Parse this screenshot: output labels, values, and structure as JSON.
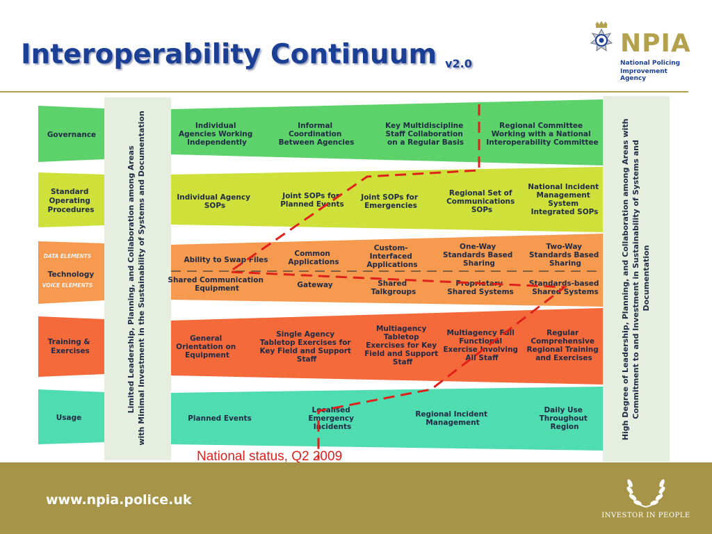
{
  "header": {
    "title": "Interoperability Continuum",
    "version": "v2.0"
  },
  "logo": {
    "name": "NPIA",
    "line1": "National Policing",
    "line2": "Improvement Agency"
  },
  "colors": {
    "governance": "#5ed26a",
    "sop": "#cfe03a",
    "technology": "#f69a4f",
    "training": "#f46a3b",
    "usage": "#4fdcb0",
    "path": "#e0201b",
    "footer": "#a69548",
    "title": "#1b3f95"
  },
  "diagram": {
    "left_label": [
      "Limited Leadership, Planning, and Collaboration among Areas",
      "with Minimal Investment in the Sustainability of Systems and Documentation"
    ],
    "right_label": [
      "High Degree of Leadership, Planning, and Collaboration among Areas with",
      "Commitment to and Investment in Sustainability of Systems and",
      "Documentation"
    ],
    "rows": {
      "governance": {
        "label": [
          "Governance"
        ],
        "cells": [
          [
            "Individual",
            "Agencies Working",
            "Independently"
          ],
          [
            "Informal",
            "Coordination",
            "Between Agencies"
          ],
          [
            "Key Multidiscipline",
            "Staff Collaboration",
            "on a Regular Basis"
          ],
          [
            "Regional Committee",
            "Working with a National",
            "Interoperability Committee"
          ]
        ]
      },
      "sop": {
        "label": [
          "Standard",
          "Operating",
          "Procedures"
        ],
        "cells": [
          [
            "Individual Agency",
            "SOPs"
          ],
          [
            "Joint SOPs for",
            "Planned Events"
          ],
          [
            "Joint SOPs for",
            "Emergencies"
          ],
          [
            "Regional Set of",
            "Communications",
            "SOPs"
          ],
          [
            "National Incident",
            "Management",
            "System",
            "Integrated SOPs"
          ]
        ]
      },
      "technology": {
        "label": [
          "Technology"
        ],
        "data_elements": "DATA ELEMENTS",
        "voice_elements": "VOICE ELEMENTS",
        "data_cells": [
          [
            "Ability to Swap Files"
          ],
          [
            "Common",
            "Applications"
          ],
          [
            "Custom-",
            "Interfaced",
            "Applications"
          ],
          [
            "One-Way",
            "Standards Based",
            "Sharing"
          ],
          [
            "Two-Way",
            "Standards Based",
            "Sharing"
          ]
        ],
        "voice_cells": [
          [
            "Shared Communication",
            "Equipment"
          ],
          [
            "Gateway"
          ],
          [
            "Shared",
            "Talkgroups"
          ],
          [
            "Proprietary",
            "Shared Systems"
          ],
          [
            "Standards-based",
            "Shared Systems"
          ]
        ]
      },
      "training": {
        "label": [
          "Training &",
          "Exercises"
        ],
        "cells": [
          [
            "General",
            "Orientation on",
            "Equipment"
          ],
          [
            "Single Agency",
            "Tabletop Exercises for",
            "Key Field and Support",
            "Staff"
          ],
          [
            "Multiagency",
            "Tabletop",
            "Exercises for Key",
            "Field and Support",
            "Staff"
          ],
          [
            "Multiagency Full",
            "Functional",
            "Exercise Involving",
            "All Staff"
          ],
          [
            "Regular",
            "Comprehensive",
            "Regional Training",
            "and Exercises"
          ]
        ]
      },
      "usage": {
        "label": [
          "Usage"
        ],
        "cells": [
          [
            "Planned Events"
          ],
          [
            "Localised",
            "Emergency",
            "Incidents"
          ],
          [
            "Regional Incident",
            "Management"
          ],
          [
            "Daily Use",
            "Throughout",
            "Region"
          ]
        ]
      }
    }
  },
  "status_note": "National status, Q2 2009",
  "footer": {
    "url": "www.npia.police.uk",
    "badge": "INVESTOR IN PEOPLE"
  }
}
